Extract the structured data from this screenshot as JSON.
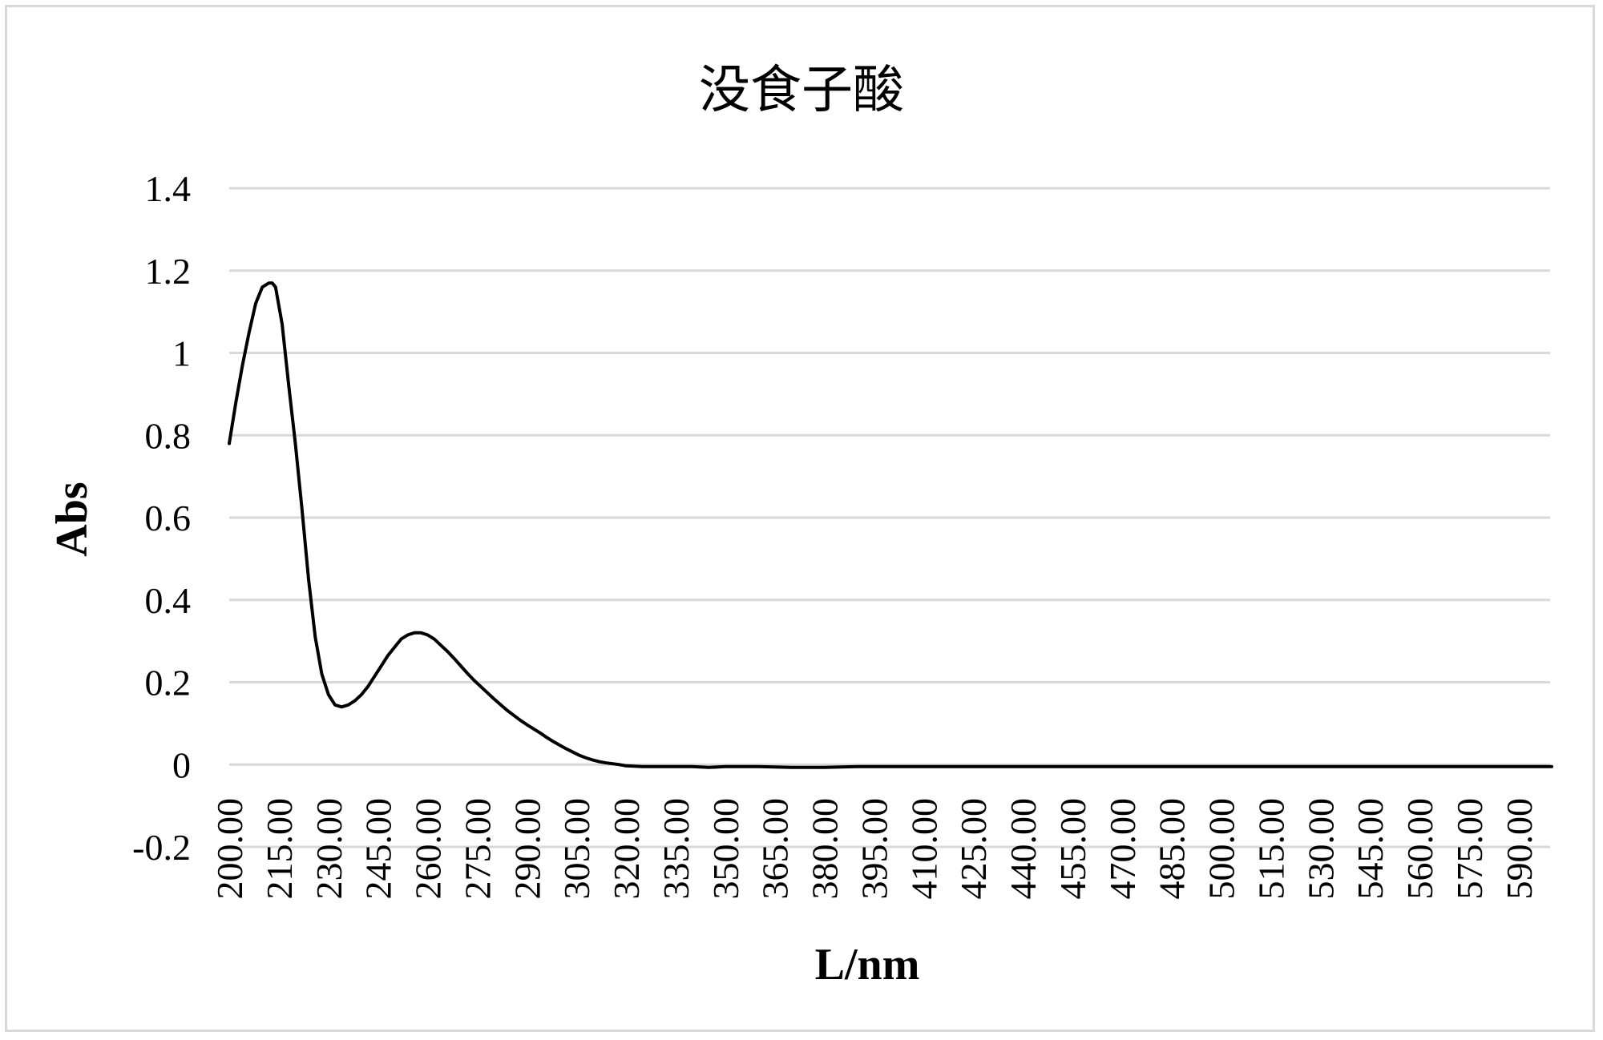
{
  "chart_data": {
    "type": "line",
    "title": "没食子酸",
    "xlabel": "L/nm",
    "ylabel": "Abs",
    "xlim": [
      200,
      600
    ],
    "ylim": [
      -0.2,
      1.4
    ],
    "grid": true,
    "legend": "none",
    "y_ticks": [
      -0.2,
      0,
      0.2,
      0.4,
      0.6,
      0.8,
      1,
      1.2,
      1.4
    ],
    "y_tick_labels": [
      "-0.2",
      "0",
      "0.2",
      "0.4",
      "0.6",
      "0.8",
      "1",
      "1.2",
      "1.4"
    ],
    "x_tick_labels": [
      "200.00",
      "215.00",
      "230.00",
      "245.00",
      "260.00",
      "275.00",
      "290.00",
      "305.00",
      "320.00",
      "335.00",
      "350.00",
      "365.00",
      "380.00",
      "395.00",
      "410.00",
      "425.00",
      "440.00",
      "455.00",
      "470.00",
      "485.00",
      "500.00",
      "515.00",
      "530.00",
      "545.00",
      "560.00",
      "575.00",
      "590.00"
    ],
    "line_color": "#000000",
    "grid_color": "#d9d9d9",
    "series": [
      {
        "x": [
          200,
          202,
          204,
          206,
          208,
          210,
          212,
          213,
          214,
          216,
          218,
          220,
          222,
          224,
          226,
          228,
          230,
          232,
          234,
          236,
          238,
          240,
          242,
          244,
          246,
          248,
          250,
          252,
          254,
          256,
          258,
          260,
          262,
          264,
          266,
          268,
          270,
          272,
          274,
          276,
          278,
          280,
          282,
          284,
          286,
          288,
          290,
          292,
          294,
          296,
          298,
          300,
          302,
          304,
          306,
          308,
          310,
          312,
          314,
          316,
          318,
          320,
          325,
          330,
          340,
          345,
          350,
          360,
          370,
          380,
          390,
          400,
          450,
          500,
          550,
          600
        ],
        "y": [
          0.78,
          0.88,
          0.97,
          1.05,
          1.12,
          1.16,
          1.17,
          1.17,
          1.16,
          1.07,
          0.92,
          0.78,
          0.62,
          0.45,
          0.31,
          0.22,
          0.17,
          0.145,
          0.14,
          0.145,
          0.155,
          0.17,
          0.19,
          0.215,
          0.24,
          0.265,
          0.285,
          0.305,
          0.315,
          0.32,
          0.32,
          0.315,
          0.305,
          0.29,
          0.275,
          0.258,
          0.24,
          0.222,
          0.205,
          0.19,
          0.175,
          0.16,
          0.146,
          0.132,
          0.12,
          0.108,
          0.097,
          0.087,
          0.077,
          0.066,
          0.056,
          0.047,
          0.038,
          0.03,
          0.022,
          0.016,
          0.011,
          0.007,
          0.004,
          0.002,
          0.0,
          -0.003,
          -0.005,
          -0.005,
          -0.005,
          -0.007,
          -0.005,
          -0.005,
          -0.007,
          -0.007,
          -0.005,
          -0.005,
          -0.005,
          -0.005,
          -0.005,
          -0.005
        ]
      }
    ]
  }
}
